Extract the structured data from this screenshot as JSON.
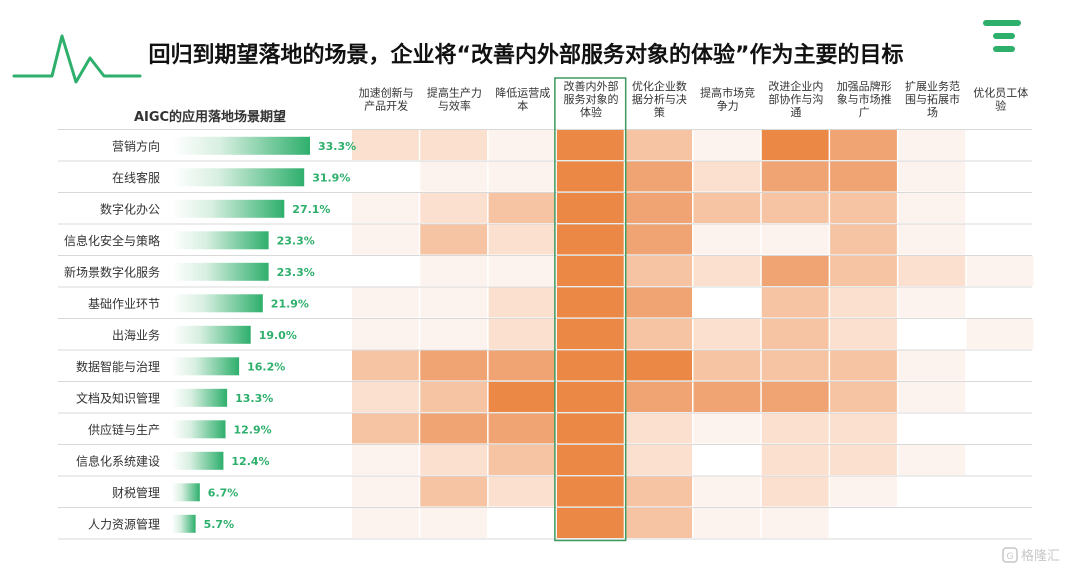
{
  "title": "回归到期望落地的场景，企业将“改善内外部服务对象的体验”作为主要的目标",
  "watermark": "格隆汇",
  "colors": {
    "accent_green": "#2eaf6c",
    "heat": [
      "#ffffff",
      "#fdf3ee",
      "#fbe0cf",
      "#f6c4a2",
      "#f0a473",
      "#eb8845"
    ],
    "highlight_border": "#3c9a5f"
  },
  "chart_data": [
    {
      "type": "bar",
      "title": "AIGC的应用落地场景期望",
      "categories": [
        "营销方向",
        "在线客服",
        "数字化办公",
        "信息化安全与策略",
        "新场景数字化服务",
        "基础作业环节",
        "出海业务",
        "数据智能与治理",
        "文档及知识管理",
        "供应链与生产",
        "信息化系统建设",
        "财税管理",
        "人力资源管理"
      ],
      "values": [
        33.3,
        31.9,
        27.1,
        23.3,
        23.3,
        21.9,
        19.0,
        16.2,
        13.3,
        12.9,
        12.4,
        6.7,
        5.7
      ],
      "value_labels": [
        "33.3%",
        "31.9%",
        "27.1%",
        "23.3%",
        "23.3%",
        "21.9%",
        "19.0%",
        "16.2%",
        "13.3%",
        "12.9%",
        "12.4%",
        "6.7%",
        "5.7%"
      ],
      "xlim": [
        0,
        33.3
      ]
    },
    {
      "type": "heatmap",
      "columns": [
        [
          "加速创新与",
          "产品开发"
        ],
        [
          "提高生产力",
          "与效率"
        ],
        [
          "降低运营成",
          "本"
        ],
        [
          "改善内外部",
          "服务对象的",
          "体验"
        ],
        [
          "优化企业数",
          "据分析与决",
          "策"
        ],
        [
          "提高市场竞",
          "争力"
        ],
        [
          "改进企业内",
          "部协作与沟",
          "通"
        ],
        [
          "加强品牌形",
          "象与市场推",
          "广"
        ],
        [
          "扩展业务范",
          "围与拓展市",
          "场"
        ],
        [
          "优化员工体",
          "验"
        ]
      ],
      "rows": [
        "营销方向",
        "在线客服",
        "数字化办公",
        "信息化安全与策略",
        "新场景数字化服务",
        "基础作业环节",
        "出海业务",
        "数据智能与治理",
        "文档及知识管理",
        "供应链与生产",
        "信息化系统建设",
        "财税管理",
        "人力资源管理"
      ],
      "intensity_scale": [
        0,
        5
      ],
      "highlight_column": 3,
      "values": [
        [
          2,
          2,
          1,
          5,
          3,
          1,
          5,
          4,
          1,
          0
        ],
        [
          0,
          1,
          1,
          5,
          4,
          2,
          4,
          4,
          1,
          0
        ],
        [
          1,
          2,
          3,
          5,
          4,
          3,
          3,
          3,
          1,
          0
        ],
        [
          1,
          3,
          2,
          5,
          4,
          1,
          1,
          3,
          1,
          0
        ],
        [
          0,
          1,
          1,
          5,
          3,
          2,
          4,
          3,
          2,
          1
        ],
        [
          1,
          1,
          2,
          5,
          4,
          0,
          3,
          2,
          1,
          0
        ],
        [
          1,
          1,
          2,
          5,
          3,
          2,
          3,
          2,
          0,
          1
        ],
        [
          3,
          4,
          4,
          5,
          5,
          3,
          3,
          3,
          1,
          0
        ],
        [
          2,
          3,
          5,
          5,
          4,
          4,
          4,
          3,
          1,
          0
        ],
        [
          3,
          4,
          4,
          5,
          2,
          1,
          2,
          2,
          0,
          0
        ],
        [
          1,
          2,
          3,
          5,
          2,
          0,
          2,
          2,
          1,
          0
        ],
        [
          1,
          3,
          2,
          5,
          3,
          1,
          2,
          1,
          0,
          0
        ],
        [
          1,
          1,
          0,
          5,
          3,
          1,
          1,
          0,
          0,
          0
        ]
      ]
    }
  ]
}
